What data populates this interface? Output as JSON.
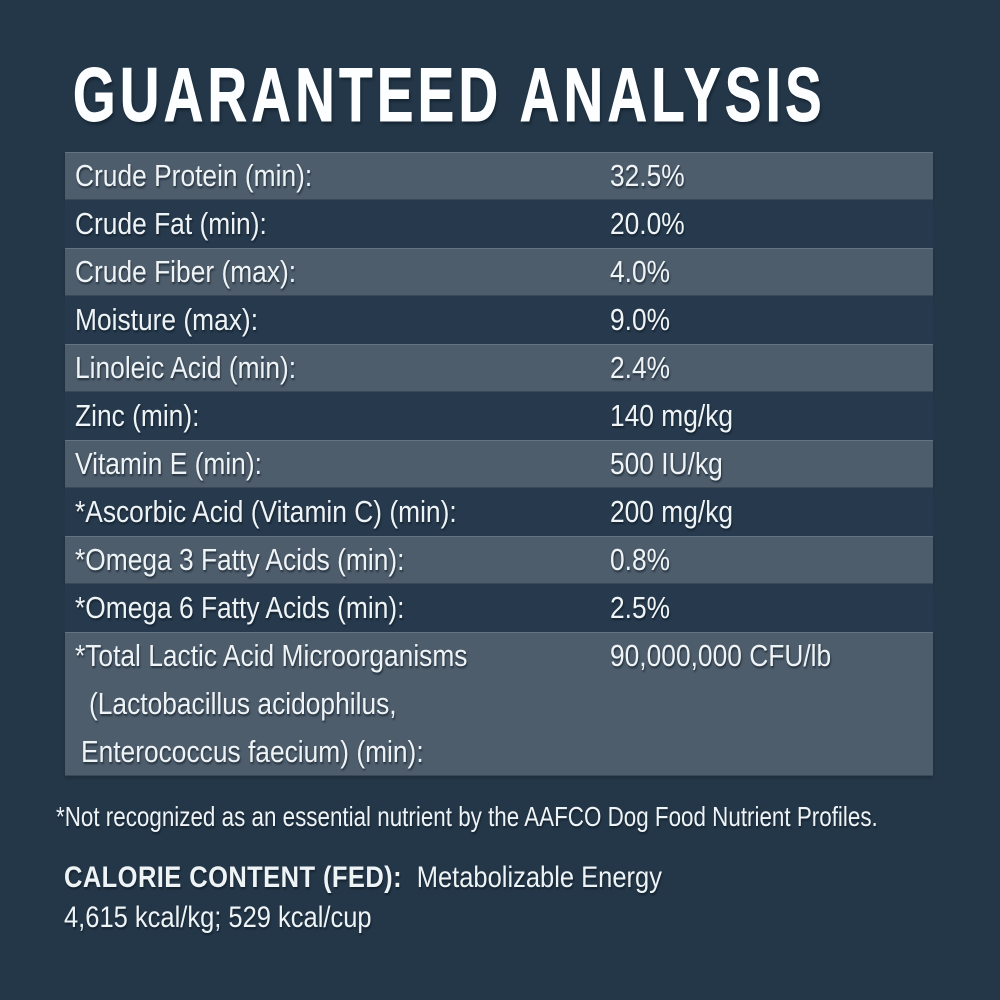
{
  "title": "GUARANTEED ANALYSIS",
  "colors": {
    "background": "#243748",
    "row_light": "#4e5d6c",
    "row_dark": "#273a4d",
    "text": "#eef3f6"
  },
  "table": {
    "rows": [
      {
        "label": "Crude Protein (min):",
        "value": "32.5%"
      },
      {
        "label": "Crude Fat (min):",
        "value": "20.0%"
      },
      {
        "label": "Crude Fiber (max):",
        "value": "4.0%"
      },
      {
        "label": "Moisture (max):",
        "value": "9.0%"
      },
      {
        "label": "Linoleic Acid (min):",
        "value": "2.4%"
      },
      {
        "label": "Zinc (min):",
        "value": "140 mg/kg"
      },
      {
        "label": "Vitamin E (min):",
        "value": "500 IU/kg"
      },
      {
        "label": "*Ascorbic Acid (Vitamin C) (min):",
        "value": "200 mg/kg"
      },
      {
        "label": "*Omega 3 Fatty Acids (min):",
        "value": "0.8%"
      },
      {
        "label": "*Omega 6 Fatty Acids (min):",
        "value": "2.5%"
      },
      {
        "label_lines": [
          "*Total Lactic Acid Microorganisms",
          "(Lactobacillus acidophilus,",
          "Enterococcus faecium) (min):"
        ],
        "value": "90,000,000 CFU/lb"
      }
    ]
  },
  "footnote": "*Not recognized as an essential nutrient by the AAFCO Dog Food Nutrient Profiles.",
  "calorie": {
    "heading": "CALORIE CONTENT (FED):",
    "description": "Metabolizable Energy",
    "values": "4,615 kcal/kg; 529 kcal/cup"
  }
}
